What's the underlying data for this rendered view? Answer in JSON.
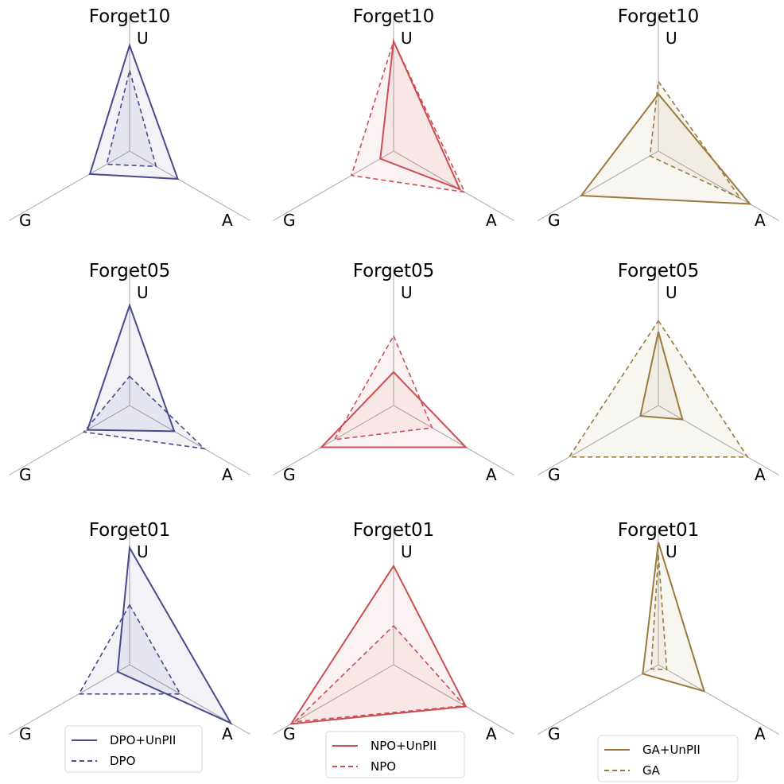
{
  "figure": {
    "axes": [
      "U",
      "A",
      "G"
    ]
  },
  "chart_data": [
    {
      "type": "radar",
      "title": "Forget10",
      "axes": [
        "U",
        "A",
        "G"
      ],
      "color": "#4a4a8c",
      "rmax": 1.0,
      "series": [
        {
          "name": "DPO+UnPII",
          "style": "solid",
          "values": [
            0.76,
            0.4,
            0.33
          ]
        },
        {
          "name": "DPO",
          "style": "dashed",
          "values": [
            0.58,
            0.22,
            0.19
          ]
        }
      ]
    },
    {
      "type": "radar",
      "title": "Forget10",
      "axes": [
        "U",
        "A",
        "G"
      ],
      "color": "#cc4e52",
      "rmax": 1.0,
      "series": [
        {
          "name": "NPO+UnPII",
          "style": "solid",
          "values": [
            0.79,
            0.55,
            0.11
          ]
        },
        {
          "name": "NPO",
          "style": "dashed",
          "values": [
            0.79,
            0.59,
            0.35
          ]
        }
      ]
    },
    {
      "type": "radar",
      "title": "Forget10",
      "axes": [
        "U",
        "A",
        "G"
      ],
      "color": "#9c7a3c",
      "rmax": 1.0,
      "series": [
        {
          "name": "GA+UnPII",
          "style": "solid",
          "values": [
            0.41,
            0.76,
            0.64
          ]
        },
        {
          "name": "GA",
          "style": "dashed",
          "values": [
            0.5,
            0.68,
            0.07
          ]
        }
      ]
    },
    {
      "type": "radar",
      "title": "Forget05",
      "axes": [
        "U",
        "A",
        "G"
      ],
      "color": "#4a4a8c",
      "rmax": 1.0,
      "series": [
        {
          "name": "DPO+UnPII",
          "style": "solid",
          "values": [
            0.72,
            0.37,
            0.35
          ]
        },
        {
          "name": "DPO",
          "style": "dashed",
          "values": [
            0.21,
            0.62,
            0.38
          ]
        }
      ]
    },
    {
      "type": "radar",
      "title": "Forget05",
      "axes": [
        "U",
        "A",
        "G"
      ],
      "color": "#cc4e52",
      "rmax": 1.0,
      "series": [
        {
          "name": "NPO+UnPII",
          "style": "solid",
          "values": [
            0.24,
            0.6,
            0.6
          ]
        },
        {
          "name": "NPO",
          "style": "dashed",
          "values": [
            0.5,
            0.32,
            0.49
          ]
        }
      ]
    },
    {
      "type": "radar",
      "title": "Forget05",
      "axes": [
        "U",
        "A",
        "G"
      ],
      "color": "#9c7a3c",
      "rmax": 1.0,
      "series": [
        {
          "name": "GA+UnPII",
          "style": "solid",
          "values": [
            0.53,
            0.2,
            0.15
          ]
        },
        {
          "name": "GA",
          "style": "dashed",
          "values": [
            0.61,
            0.74,
            0.74
          ]
        }
      ]
    },
    {
      "type": "radar",
      "title": "Forget01",
      "axes": [
        "U",
        "A",
        "G"
      ],
      "color": "#4a4a8c",
      "rmax": 1.0,
      "series": [
        {
          "name": "DPO+UnPII",
          "style": "solid",
          "values": [
            0.84,
            0.84,
            0.1
          ]
        },
        {
          "name": "DPO",
          "style": "dashed",
          "values": [
            0.43,
            0.42,
            0.42
          ]
        }
      ]
    },
    {
      "type": "radar",
      "title": "Forget01",
      "axes": [
        "U",
        "A",
        "G"
      ],
      "color": "#cc4e52",
      "rmax": 1.0,
      "series": [
        {
          "name": "NPO+UnPII",
          "style": "solid",
          "values": [
            0.71,
            0.6,
            0.85
          ]
        },
        {
          "name": "NPO",
          "style": "dashed",
          "values": [
            0.28,
            0.59,
            0.82
          ]
        }
      ]
    },
    {
      "type": "radar",
      "title": "Forget01",
      "axes": [
        "U",
        "A",
        "G"
      ],
      "color": "#9c7a3c",
      "rmax": 1.0,
      "series": [
        {
          "name": "GA+UnPII",
          "style": "solid",
          "values": [
            0.88,
            0.38,
            0.13
          ]
        },
        {
          "name": "GA",
          "style": "dashed",
          "values": [
            0.79,
            0.07,
            0.06
          ]
        }
      ]
    }
  ],
  "legends": [
    {
      "items": [
        {
          "label": "DPO+UnPII",
          "style": "solid"
        },
        {
          "label": "DPO",
          "style": "dashed"
        }
      ],
      "color": "#4a4a8c"
    },
    {
      "items": [
        {
          "label": "NPO+UnPII",
          "style": "solid"
        },
        {
          "label": "NPO",
          "style": "dashed"
        }
      ],
      "color": "#cc4e52"
    },
    {
      "items": [
        {
          "label": "GA+UnPII",
          "style": "solid"
        },
        {
          "label": "GA",
          "style": "dashed"
        }
      ],
      "color": "#9c7a3c"
    }
  ]
}
